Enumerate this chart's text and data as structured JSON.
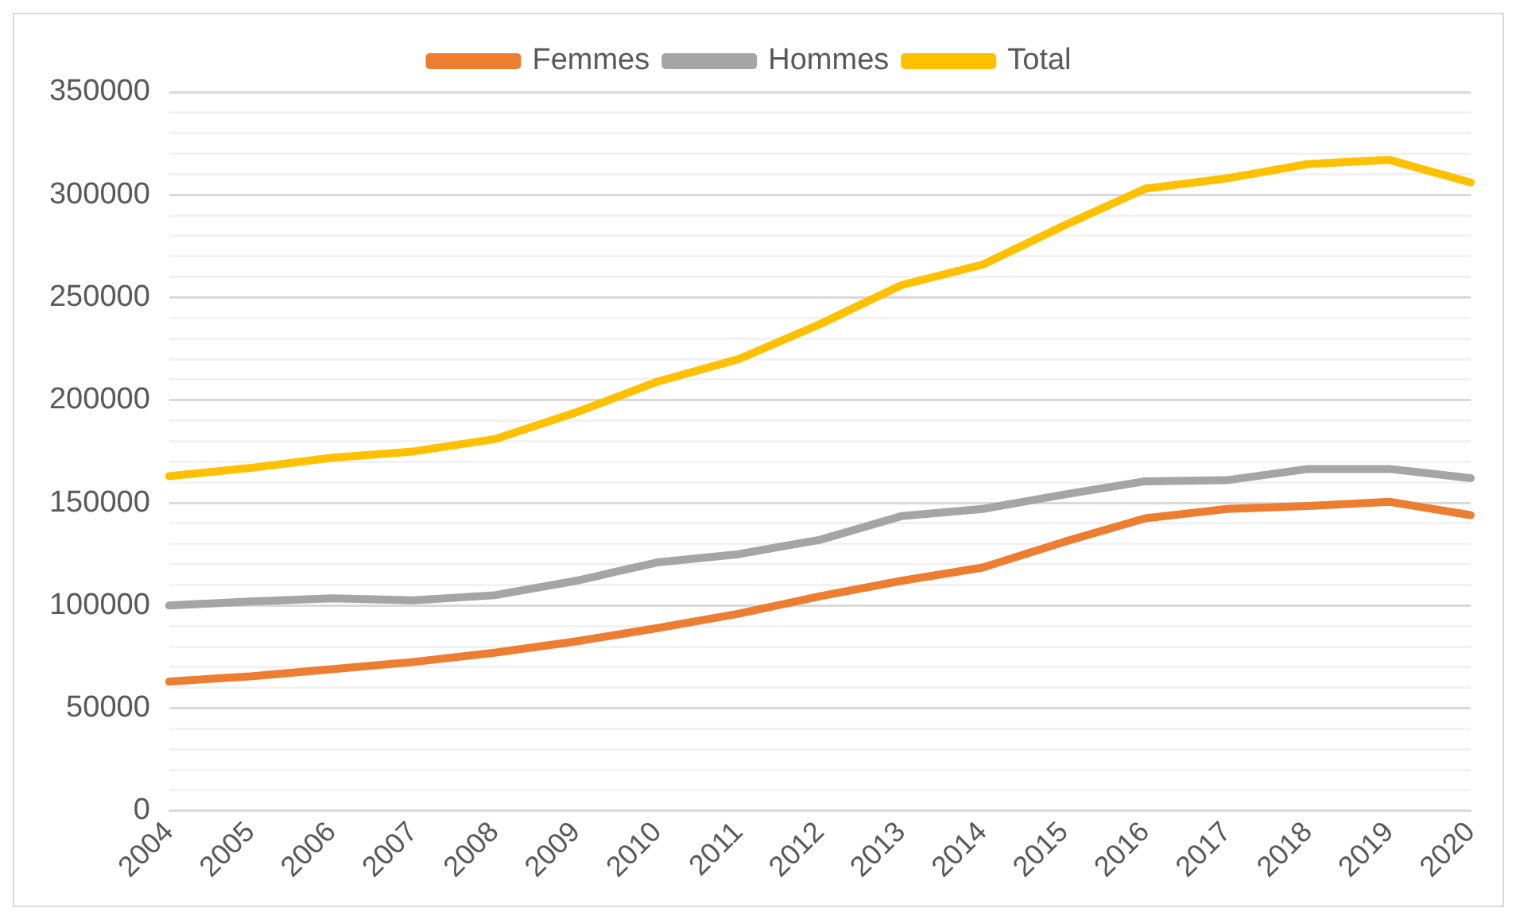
{
  "chart_data": {
    "type": "line",
    "categories": [
      "2004",
      "2005",
      "2006",
      "2007",
      "2008",
      "2009",
      "2010",
      "2011",
      "2012",
      "2013",
      "2014",
      "2015",
      "2016",
      "2017",
      "2018",
      "2019",
      "2020"
    ],
    "series": [
      {
        "name": "Femmes",
        "color": "#ed7d31",
        "values": [
          63000,
          65500,
          69000,
          72500,
          77000,
          82500,
          89000,
          96000,
          104500,
          112000,
          118500,
          131000,
          142500,
          147000,
          148500,
          150500,
          144000
        ]
      },
      {
        "name": "Hommes",
        "color": "#a5a5a5",
        "values": [
          100000,
          102000,
          103500,
          102500,
          105000,
          112000,
          121000,
          125000,
          132000,
          143500,
          147000,
          154000,
          160500,
          161000,
          166500,
          166500,
          162000
        ]
      },
      {
        "name": "Total",
        "color": "#ffc000",
        "values": [
          163000,
          167000,
          172000,
          175000,
          181000,
          194000,
          209000,
          220000,
          237000,
          256000,
          266000,
          285000,
          303000,
          308000,
          315000,
          317000,
          306000
        ]
      }
    ],
    "ylim": [
      0,
      350000
    ],
    "yticks": [
      0,
      {
        "value": 10000,
        "label": null
      },
      {
        "value": 20000,
        "label": null
      },
      {
        "value": 30000,
        "label": null
      },
      {
        "value": 40000,
        "label": null
      },
      50000,
      {
        "value": 60000,
        "label": null
      },
      {
        "value": 70000,
        "label": null
      },
      {
        "value": 80000,
        "label": null
      },
      {
        "value": 90000,
        "label": null
      },
      100000,
      {
        "value": 110000,
        "label": null
      },
      {
        "value": 120000,
        "label": null
      },
      {
        "value": 130000,
        "label": null
      },
      {
        "value": 140000,
        "label": null
      },
      150000,
      {
        "value": 160000,
        "label": null
      },
      {
        "value": 170000,
        "label": null
      },
      {
        "value": 180000,
        "label": null
      },
      {
        "value": 190000,
        "label": null
      },
      200000,
      {
        "value": 210000,
        "label": null
      },
      {
        "value": 220000,
        "label": null
      },
      {
        "value": 230000,
        "label": null
      },
      {
        "value": 240000,
        "label": null
      },
      250000,
      {
        "value": 260000,
        "label": null
      },
      {
        "value": 270000,
        "label": null
      },
      {
        "value": 280000,
        "label": null
      },
      {
        "value": 290000,
        "label": null
      },
      300000,
      {
        "value": 310000,
        "label": null
      },
      {
        "value": 320000,
        "label": null
      },
      {
        "value": 330000,
        "label": null
      },
      {
        "value": 340000,
        "label": null
      },
      350000
    ],
    "grid": "y",
    "legend": "top",
    "marker": "none",
    "line_style": "solid"
  }
}
